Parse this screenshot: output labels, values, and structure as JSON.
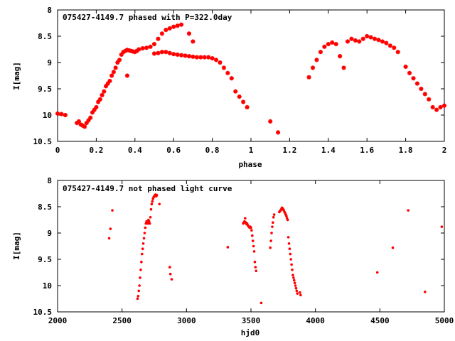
{
  "chart_data": [
    {
      "type": "scatter",
      "title": "075427-4149.7 phased with P=322.0day",
      "xlabel": "phase",
      "ylabel": "I[mag]",
      "xlim": [
        0,
        2
      ],
      "ylim": [
        10.5,
        8
      ],
      "y_inverted": true,
      "xticks": [
        "0",
        "0.2",
        "0.4",
        "0.6",
        "0.8",
        "1",
        "1.2",
        "1.4",
        "1.6",
        "1.8",
        "2"
      ],
      "yticks": [
        "8",
        "8.5",
        "9",
        "9.5",
        "10",
        "10.5"
      ],
      "grid": false,
      "marker_color": "#ff0000",
      "series": [
        {
          "x": [
            0.0,
            0.02,
            0.04,
            0.1,
            0.11,
            0.12,
            0.13,
            0.14,
            0.15,
            0.16,
            0.17,
            0.18,
            0.19,
            0.2,
            0.21,
            0.22,
            0.23,
            0.24,
            0.25,
            0.26,
            0.27,
            0.28,
            0.29,
            0.3,
            0.31,
            0.32,
            0.33,
            0.34,
            0.35,
            0.36,
            0.37,
            0.38,
            0.39,
            0.4,
            0.41,
            0.42,
            0.44,
            0.46,
            0.48,
            0.5,
            0.52,
            0.54,
            0.56,
            0.58,
            0.6,
            0.62,
            0.64,
            0.5,
            0.52,
            0.54,
            0.56,
            0.58,
            0.6,
            0.62,
            0.64,
            0.66,
            0.68,
            0.7,
            0.72,
            0.74,
            0.76,
            0.78,
            0.8,
            0.82,
            0.84,
            0.86,
            0.88,
            0.9,
            0.92,
            0.94,
            0.96,
            0.98,
            0.36,
            0.68,
            0.7,
            1.1,
            1.14,
            1.3,
            1.32,
            1.34,
            1.36,
            1.38,
            1.4,
            1.42,
            1.44,
            1.46,
            1.48,
            1.5,
            1.52,
            1.54,
            1.56,
            1.58,
            1.6,
            1.62,
            1.64,
            1.66,
            1.68,
            1.7,
            1.72,
            1.74,
            1.76,
            1.8,
            1.82,
            1.84,
            1.86,
            1.88,
            1.9,
            1.92,
            1.94,
            1.96,
            1.98,
            2.0
          ],
          "y": [
            9.97,
            9.98,
            10.0,
            10.15,
            10.12,
            10.18,
            10.2,
            10.22,
            10.15,
            10.1,
            10.05,
            9.95,
            9.9,
            9.85,
            9.75,
            9.7,
            9.62,
            9.55,
            9.45,
            9.4,
            9.35,
            9.25,
            9.18,
            9.1,
            9.0,
            8.95,
            8.85,
            8.8,
            8.78,
            8.76,
            8.77,
            8.78,
            8.79,
            8.8,
            8.78,
            8.75,
            8.73,
            8.72,
            8.7,
            8.65,
            8.55,
            8.45,
            8.38,
            8.35,
            8.32,
            8.3,
            8.28,
            8.83,
            8.82,
            8.8,
            8.8,
            8.82,
            8.84,
            8.85,
            8.86,
            8.87,
            8.88,
            8.89,
            8.9,
            8.9,
            8.9,
            8.9,
            8.92,
            8.95,
            9.0,
            9.1,
            9.2,
            9.3,
            9.55,
            9.65,
            9.75,
            9.85,
            9.25,
            8.45,
            8.6,
            10.12,
            10.33,
            9.28,
            9.1,
            8.95,
            8.8,
            8.7,
            8.65,
            8.62,
            8.65,
            8.88,
            9.1,
            8.6,
            8.55,
            8.58,
            8.6,
            8.55,
            8.5,
            8.52,
            8.55,
            8.57,
            8.6,
            8.63,
            8.68,
            8.72,
            8.8,
            9.08,
            9.2,
            9.3,
            9.4,
            9.5,
            9.6,
            9.7,
            9.85,
            9.9,
            9.85,
            9.82
          ]
        }
      ]
    },
    {
      "type": "scatter",
      "title": "075427-4149.7 not phased light curve",
      "xlabel": "hjd0",
      "ylabel": "I[mag]",
      "xlim": [
        2000,
        5000
      ],
      "ylim": [
        10.5,
        8
      ],
      "y_inverted": true,
      "xticks": [
        "2000",
        "2500",
        "3000",
        "3500",
        "4000",
        "4500",
        "5000"
      ],
      "yticks": [
        "8",
        "8.5",
        "9",
        "9.5",
        "10",
        "10.5"
      ],
      "grid": false,
      "marker_color": "#ff0000",
      "series": [
        {
          "x": [
            2400,
            2410,
            2425,
            2620,
            2625,
            2630,
            2635,
            2640,
            2645,
            2650,
            2655,
            2660,
            2665,
            2670,
            2675,
            2680,
            2685,
            2690,
            2695,
            2700,
            2705,
            2710,
            2715,
            2720,
            2725,
            2730,
            2735,
            2740,
            2745,
            2750,
            2755,
            2760,
            2765,
            2770,
            2790,
            2870,
            2875,
            2885,
            3320,
            3440,
            3445,
            3450,
            3455,
            3460,
            3465,
            3470,
            3475,
            3480,
            3485,
            3490,
            3495,
            3500,
            3505,
            3510,
            3515,
            3520,
            3525,
            3530,
            3535,
            3540,
            3580,
            3650,
            3655,
            3660,
            3665,
            3670,
            3675,
            3680,
            3720,
            3725,
            3730,
            3735,
            3740,
            3745,
            3750,
            3755,
            3760,
            3765,
            3770,
            3775,
            3780,
            3785,
            3790,
            3795,
            3800,
            3805,
            3810,
            3815,
            3820,
            3825,
            3830,
            3835,
            3840,
            3845,
            3850,
            3855,
            3860,
            3880,
            3885,
            4480,
            4600,
            4720,
            4850,
            4980
          ],
          "y": [
            9.1,
            8.92,
            8.57,
            10.25,
            10.2,
            10.1,
            10.0,
            9.85,
            9.7,
            9.55,
            9.4,
            9.3,
            9.2,
            9.1,
            9.0,
            8.9,
            8.82,
            8.78,
            8.8,
            8.82,
            8.75,
            8.78,
            8.82,
            8.7,
            8.55,
            8.45,
            8.4,
            8.35,
            8.32,
            8.3,
            8.28,
            8.27,
            8.3,
            8.28,
            8.45,
            9.65,
            9.78,
            9.88,
            9.27,
            8.82,
            8.8,
            8.78,
            8.72,
            8.8,
            8.83,
            8.82,
            8.85,
            8.87,
            8.88,
            8.9,
            8.88,
            8.9,
            8.95,
            9.05,
            9.15,
            9.25,
            9.35,
            9.55,
            9.65,
            9.72,
            10.33,
            9.28,
            9.15,
            9.0,
            8.88,
            8.8,
            8.7,
            8.65,
            8.6,
            8.58,
            8.57,
            8.55,
            8.52,
            8.53,
            8.55,
            8.57,
            8.6,
            8.62,
            8.65,
            8.68,
            8.72,
            8.75,
            9.08,
            9.2,
            9.3,
            9.4,
            9.5,
            9.6,
            9.7,
            9.8,
            9.85,
            9.9,
            9.95,
            10.0,
            10.05,
            10.1,
            10.15,
            10.13,
            10.18,
            9.75,
            9.28,
            8.57,
            10.12,
            8.88
          ]
        }
      ]
    }
  ]
}
